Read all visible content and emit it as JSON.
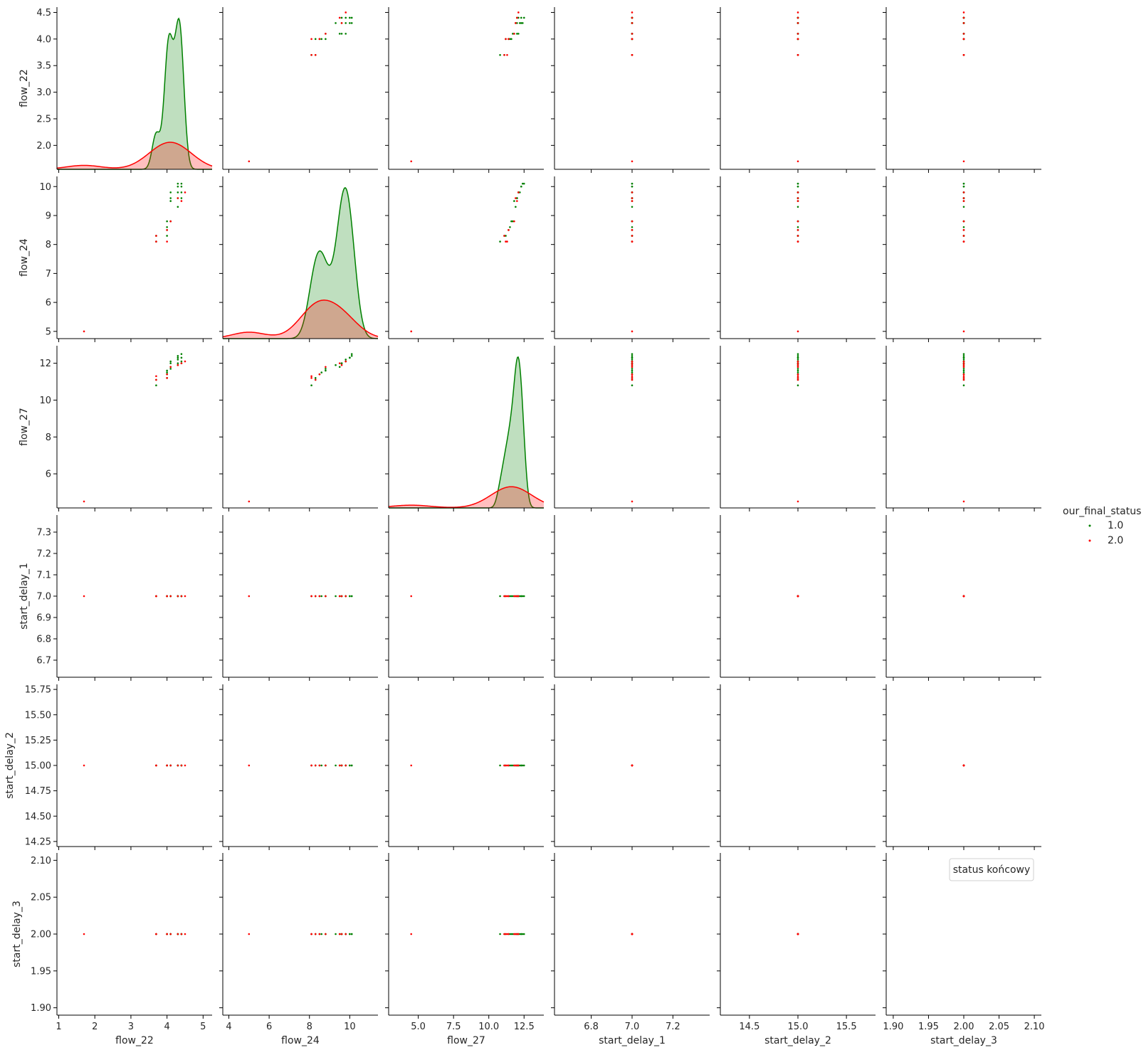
{
  "chart_data": {
    "type": "scatter",
    "variables": [
      "flow_22",
      "flow_24",
      "flow_27",
      "start_delay_1",
      "start_delay_2",
      "start_delay_3"
    ],
    "hue_title": "our_final_status",
    "hue_levels": [
      {
        "name": "1.0",
        "color": "#008000"
      },
      {
        "name": "2.0",
        "color": "#ff0000"
      }
    ],
    "extra_legend": {
      "title": "status końcowy"
    },
    "axes": {
      "flow_22": {
        "lim": [
          0.95,
          5.25
        ],
        "ticks": [
          1,
          2,
          3,
          4,
          5
        ],
        "tick_labels": [
          "1",
          "2",
          "3",
          "4",
          "5"
        ],
        "ylim": [
          1.55,
          4.6
        ],
        "yticks": [
          2.0,
          2.5,
          3.0,
          3.5,
          4.0,
          4.5
        ],
        "ytick_labels": [
          "2.0",
          "2.5",
          "3.0",
          "3.5",
          "4.0",
          "4.5"
        ]
      },
      "flow_24": {
        "lim": [
          3.7,
          11.4
        ],
        "ticks": [
          4,
          6,
          8,
          10
        ],
        "tick_labels": [
          "4",
          "6",
          "8",
          "10"
        ],
        "ylim": [
          4.75,
          10.35
        ],
        "yticks": [
          5,
          6,
          7,
          8,
          9,
          10
        ],
        "ytick_labels": [
          "5",
          "6",
          "7",
          "8",
          "9",
          "10"
        ]
      },
      "flow_27": {
        "lim": [
          2.9,
          13.9
        ],
        "ticks": [
          5.0,
          7.5,
          10.0,
          12.5
        ],
        "tick_labels": [
          "5.0",
          "7.5",
          "10.0",
          "12.5"
        ],
        "ylim": [
          4.15,
          12.95
        ],
        "yticks": [
          6,
          8,
          10,
          12
        ],
        "ytick_labels": [
          "6",
          "8",
          "10",
          "12"
        ]
      },
      "start_delay_1": {
        "lim": [
          6.62,
          7.38
        ],
        "ticks": [
          6.8,
          7.0,
          7.2
        ],
        "tick_labels": [
          "6.8",
          "7.0",
          "7.2"
        ],
        "ylim": [
          6.62,
          7.38
        ],
        "yticks": [
          6.7,
          6.8,
          6.9,
          7.0,
          7.1,
          7.2,
          7.3
        ],
        "ytick_labels": [
          "6.7",
          "6.8",
          "6.9",
          "7.0",
          "7.1",
          "7.2",
          "7.3"
        ]
      },
      "start_delay_2": {
        "lim": [
          14.2,
          15.8
        ],
        "ticks": [
          14.5,
          15.0,
          15.5
        ],
        "tick_labels": [
          "14.5",
          "15.0",
          "15.5"
        ],
        "ylim": [
          14.2,
          15.8
        ],
        "yticks": [
          14.25,
          14.5,
          14.75,
          15.0,
          15.25,
          15.5,
          15.75
        ],
        "ytick_labels": [
          "14.25",
          "14.50",
          "14.75",
          "15.00",
          "15.25",
          "15.50",
          "15.75"
        ]
      },
      "start_delay_3": {
        "lim": [
          1.89,
          2.11
        ],
        "ticks": [
          1.9,
          1.95,
          2.0,
          2.05,
          2.1
        ],
        "tick_labels": [
          "1.90",
          "1.95",
          "2.00",
          "2.05",
          "2.10"
        ],
        "ylim": [
          1.89,
          2.11
        ],
        "yticks": [
          1.9,
          1.95,
          2.0,
          2.05,
          2.1
        ],
        "ytick_labels": [
          "1.90",
          "1.95",
          "2.00",
          "2.05",
          "2.10"
        ]
      }
    },
    "series": [
      {
        "name": "1.0",
        "points": [
          {
            "flow_22": 3.7,
            "flow_24": 8.1,
            "flow_27": 10.8
          },
          {
            "flow_22": 3.7,
            "flow_24": 8.3,
            "flow_27": 11.1
          },
          {
            "flow_22": 4.0,
            "flow_24": 8.3,
            "flow_27": 11.2
          },
          {
            "flow_22": 4.0,
            "flow_24": 8.5,
            "flow_27": 11.4
          },
          {
            "flow_22": 4.0,
            "flow_24": 8.6,
            "flow_27": 11.5
          },
          {
            "flow_22": 4.0,
            "flow_24": 8.8,
            "flow_27": 11.6
          },
          {
            "flow_22": 4.1,
            "flow_24": 8.8,
            "flow_27": 11.7
          },
          {
            "flow_22": 4.1,
            "flow_24": 9.5,
            "flow_27": 11.8
          },
          {
            "flow_22": 4.1,
            "flow_24": 9.6,
            "flow_27": 12.0
          },
          {
            "flow_22": 4.1,
            "flow_24": 9.8,
            "flow_27": 12.1
          },
          {
            "flow_22": 4.3,
            "flow_24": 9.3,
            "flow_27": 11.9
          },
          {
            "flow_22": 4.3,
            "flow_24": 9.6,
            "flow_27": 12.0
          },
          {
            "flow_22": 4.3,
            "flow_24": 9.8,
            "flow_27": 12.2
          },
          {
            "flow_22": 4.3,
            "flow_24": 10.0,
            "flow_27": 12.3
          },
          {
            "flow_22": 4.3,
            "flow_24": 10.1,
            "flow_27": 12.4
          },
          {
            "flow_22": 4.4,
            "flow_24": 9.6,
            "flow_27": 12.0
          },
          {
            "flow_22": 4.4,
            "flow_24": 10.0,
            "flow_27": 12.3
          },
          {
            "flow_22": 4.4,
            "flow_24": 10.1,
            "flow_27": 12.5
          },
          {
            "flow_22": 4.4,
            "flow_24": 9.8,
            "flow_27": 12.1
          }
        ],
        "constants": {
          "start_delay_1": 7.0,
          "start_delay_2": 15.0,
          "start_delay_3": 2.0
        }
      },
      {
        "name": "2.0",
        "points": [
          {
            "flow_22": 1.7,
            "flow_24": 5.0,
            "flow_27": 4.5
          },
          {
            "flow_22": 3.7,
            "flow_24": 8.3,
            "flow_27": 11.1
          },
          {
            "flow_22": 3.7,
            "flow_24": 8.1,
            "flow_27": 11.3
          },
          {
            "flow_22": 4.0,
            "flow_24": 8.1,
            "flow_27": 11.2
          },
          {
            "flow_22": 4.0,
            "flow_24": 8.5,
            "flow_27": 11.4
          },
          {
            "flow_22": 4.1,
            "flow_24": 8.8,
            "flow_27": 11.8
          },
          {
            "flow_22": 4.3,
            "flow_24": 9.6,
            "flow_27": 11.9
          },
          {
            "flow_22": 4.4,
            "flow_24": 9.5,
            "flow_27": 12.0
          },
          {
            "flow_22": 4.5,
            "flow_24": 9.8,
            "flow_27": 12.1
          }
        ],
        "constants": {
          "start_delay_1": 7.0,
          "start_delay_2": 15.0,
          "start_delay_3": 2.0
        }
      }
    ],
    "diagonal": "kde",
    "grid": false,
    "legend_placement": "right"
  }
}
